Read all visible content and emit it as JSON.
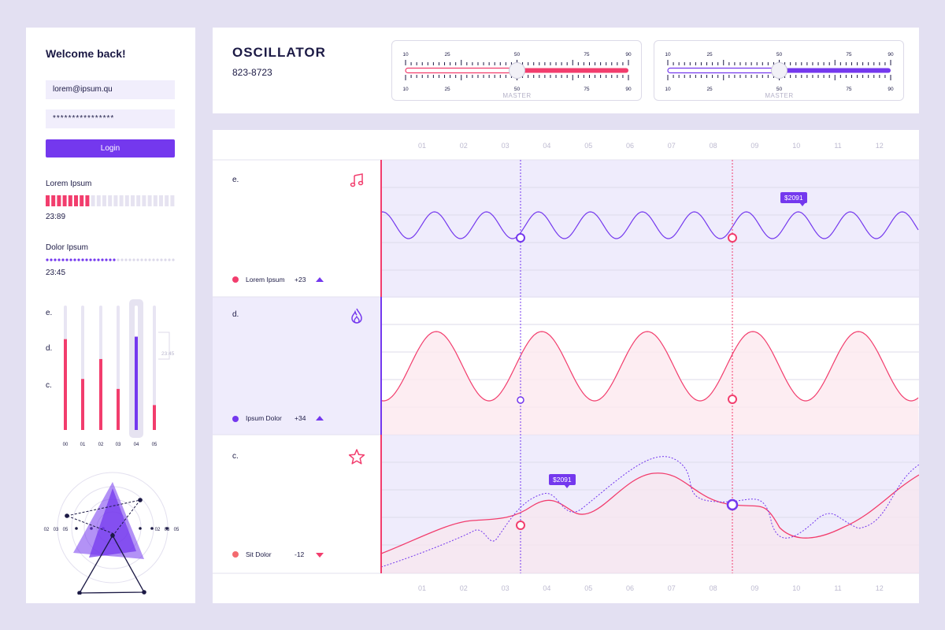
{
  "login": {
    "welcome": "Welcome back!",
    "email_value": "lorem@ipsum.qu",
    "password_value": "****************",
    "login_label": "Login"
  },
  "progress1": {
    "label": "Lorem Ipsum",
    "time": "23:89",
    "fraction": 0.34
  },
  "progress2": {
    "label": "Dolor Ipsum",
    "time": "23:45",
    "fraction": 0.55
  },
  "bar_panel": {
    "row_labels": [
      "e.",
      "d.",
      "c."
    ],
    "categories": [
      "00",
      "01",
      "02",
      "03",
      "04",
      "05"
    ],
    "values": [
      0.73,
      0.41,
      0.57,
      0.33,
      0.75,
      0.2
    ],
    "highlight_index": 4,
    "tooltip": "23:45"
  },
  "radar": {
    "tick_labels": [
      "02",
      "03",
      "05"
    ]
  },
  "header": {
    "title": "OSCILLATOR",
    "number": "823-8723",
    "slider_ticks": [
      "10",
      "25",
      "50",
      "75",
      "90"
    ],
    "slider_label": "MASTER",
    "slider1_value": 50,
    "slider2_value": 50
  },
  "timeline": {
    "months": [
      "01",
      "02",
      "03",
      "04",
      "05",
      "06",
      "07",
      "08",
      "09",
      "10",
      "11",
      "12"
    ]
  },
  "rows": [
    {
      "label": "e.",
      "icon": "music-note-icon",
      "legend": "Lorem Ipsum",
      "delta": "+23",
      "trend": "up"
    },
    {
      "label": "d.",
      "icon": "flame-icon",
      "legend": "Ipsum Dolor",
      "delta": "+34",
      "trend": "up"
    },
    {
      "label": "c.",
      "icon": "star-icon",
      "legend": "Sit Dolor",
      "delta": "-12",
      "trend": "down"
    }
  ],
  "price_tags": {
    "row1": "$2091",
    "row3": "$2091"
  },
  "colors": {
    "purple": "#7438ee",
    "pink": "#f23d6d",
    "navy": "#1c1a45",
    "lavender": "#e3e0f2"
  }
}
